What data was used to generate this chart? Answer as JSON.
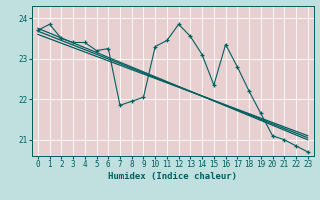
{
  "title": "",
  "xlabel": "Humidex (Indice chaleur)",
  "background_color": "#c0e0e0",
  "plot_bg_color": "#e8d0d0",
  "grid_color": "#ffffff",
  "line_color": "#006060",
  "xlim": [
    -0.5,
    23.5
  ],
  "ylim": [
    20.6,
    24.3
  ],
  "yticks": [
    21,
    22,
    23,
    24
  ],
  "xticks": [
    0,
    1,
    2,
    3,
    4,
    5,
    6,
    7,
    8,
    9,
    10,
    11,
    12,
    13,
    14,
    15,
    16,
    17,
    18,
    19,
    20,
    21,
    22,
    23
  ],
  "series1_x": [
    0,
    1,
    2,
    3,
    4,
    5,
    6,
    7,
    8,
    9,
    10,
    11,
    12,
    13,
    14,
    15,
    16,
    17,
    18,
    19,
    20,
    21,
    22,
    23
  ],
  "series1_y": [
    23.7,
    23.85,
    23.5,
    23.4,
    23.4,
    23.2,
    23.25,
    21.85,
    21.95,
    22.05,
    23.3,
    23.45,
    23.85,
    23.55,
    23.1,
    22.35,
    23.35,
    22.8,
    22.2,
    21.65,
    21.1,
    21.0,
    20.85,
    20.7
  ],
  "trend1_x": [
    0,
    23
  ],
  "trend1_y": [
    23.75,
    21.0
  ],
  "trend2_x": [
    0,
    23
  ],
  "trend2_y": [
    23.6,
    21.1
  ],
  "trend3_x": [
    0,
    23
  ],
  "trend3_y": [
    23.68,
    21.05
  ]
}
